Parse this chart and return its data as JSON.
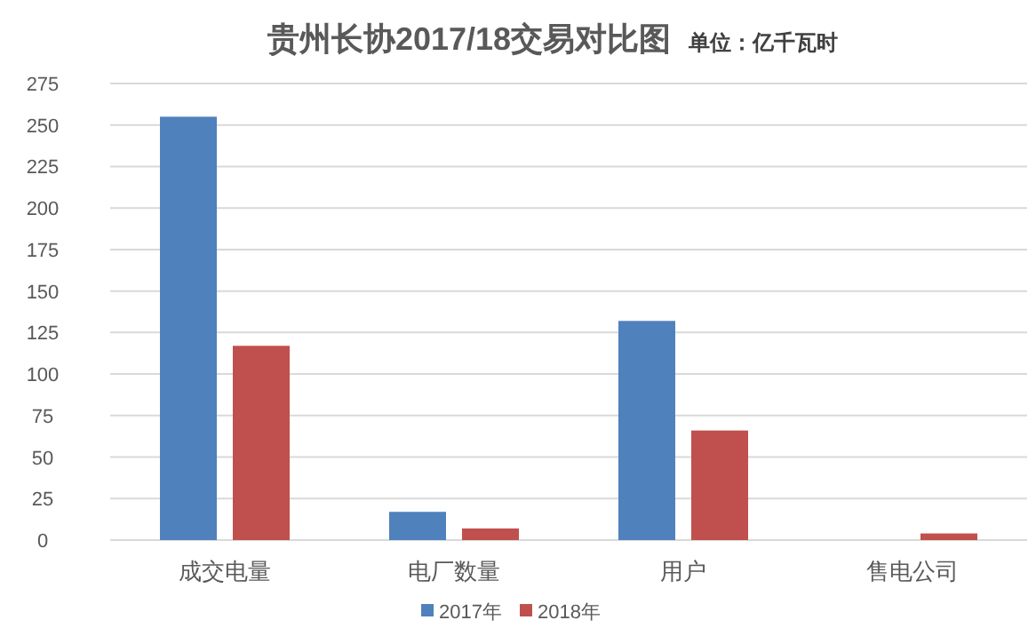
{
  "chart_data": {
    "type": "bar",
    "title": "贵州长协2017/18交易对比图",
    "subtitle": "单位：亿千瓦时",
    "categories": [
      "成交电量",
      "电厂数量",
      "用户",
      "售电公司"
    ],
    "series": [
      {
        "name": "2017年",
        "color": "#4f81bd",
        "values": [
          255,
          17,
          132,
          0
        ]
      },
      {
        "name": "2018年",
        "color": "#c0504d",
        "values": [
          117,
          7,
          66,
          4
        ]
      }
    ],
    "ylim": [
      0,
      275
    ],
    "yticks": [
      0,
      25,
      50,
      75,
      100,
      125,
      150,
      175,
      200,
      225,
      250,
      275
    ],
    "grid": "y",
    "legend": "bottom"
  }
}
